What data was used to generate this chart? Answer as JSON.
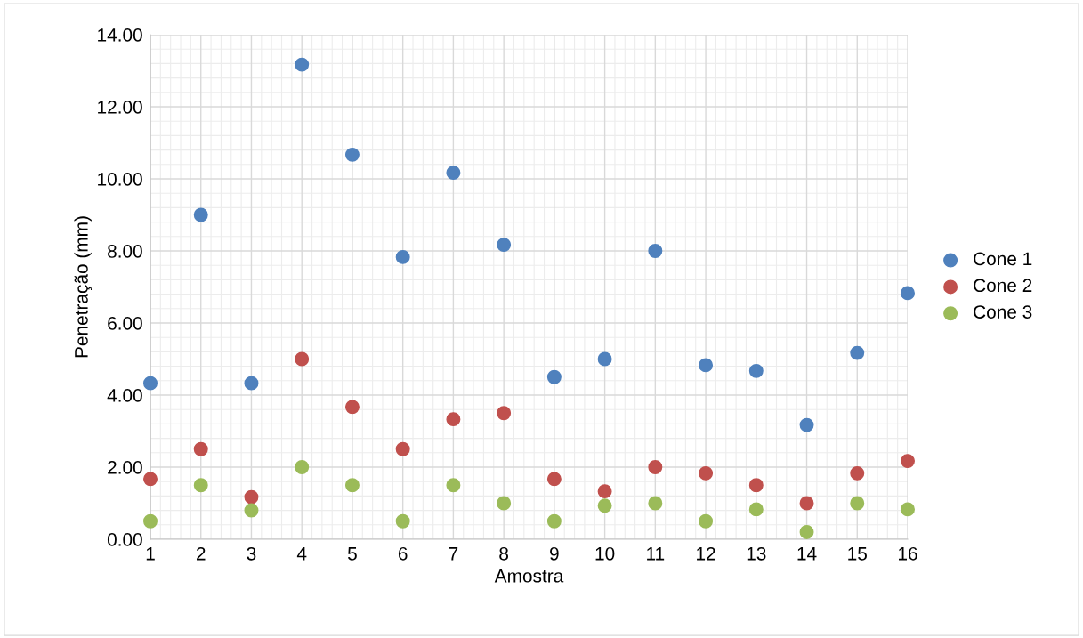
{
  "chart_data": {
    "type": "scatter",
    "xlabel": "Amostra",
    "ylabel": "Penetração (mm)",
    "x": [
      1,
      2,
      3,
      4,
      5,
      6,
      7,
      8,
      9,
      10,
      11,
      12,
      13,
      14,
      15,
      16
    ],
    "series": [
      {
        "name": "Cone 1",
        "color": "#4f81bd",
        "values": [
          4.33,
          9.0,
          4.33,
          13.17,
          10.67,
          7.83,
          10.17,
          8.17,
          4.5,
          5.0,
          8.0,
          4.83,
          4.67,
          3.17,
          5.17,
          6.83
        ]
      },
      {
        "name": "Cone 2",
        "color": "#c0504d",
        "values": [
          1.67,
          2.5,
          1.17,
          5.0,
          3.67,
          2.5,
          3.33,
          3.5,
          1.67,
          1.33,
          2.0,
          1.83,
          1.5,
          1.0,
          1.83,
          2.17
        ]
      },
      {
        "name": "Cone 3",
        "color": "#9bbb59",
        "values": [
          0.5,
          1.5,
          0.8,
          2.0,
          1.5,
          0.5,
          1.5,
          1.0,
          0.5,
          0.93,
          1.0,
          0.5,
          0.83,
          0.2,
          1.0,
          0.83
        ]
      }
    ],
    "xlim": [
      1,
      16
    ],
    "xticks": [
      1,
      2,
      3,
      4,
      5,
      6,
      7,
      8,
      9,
      10,
      11,
      12,
      13,
      14,
      15,
      16
    ],
    "ylim": [
      0,
      14
    ],
    "yticks": [
      {
        "value": 0,
        "label": "0.00"
      },
      {
        "value": 2,
        "label": "2.00"
      },
      {
        "value": 4,
        "label": "4.00"
      },
      {
        "value": 6,
        "label": "6.00"
      },
      {
        "value": 8,
        "label": "8.00"
      },
      {
        "value": 10,
        "label": "10.00"
      },
      {
        "value": 12,
        "label": "12.00"
      },
      {
        "value": 14,
        "label": "14.00"
      }
    ],
    "grid": true,
    "legend": "right",
    "marker": "circle"
  }
}
